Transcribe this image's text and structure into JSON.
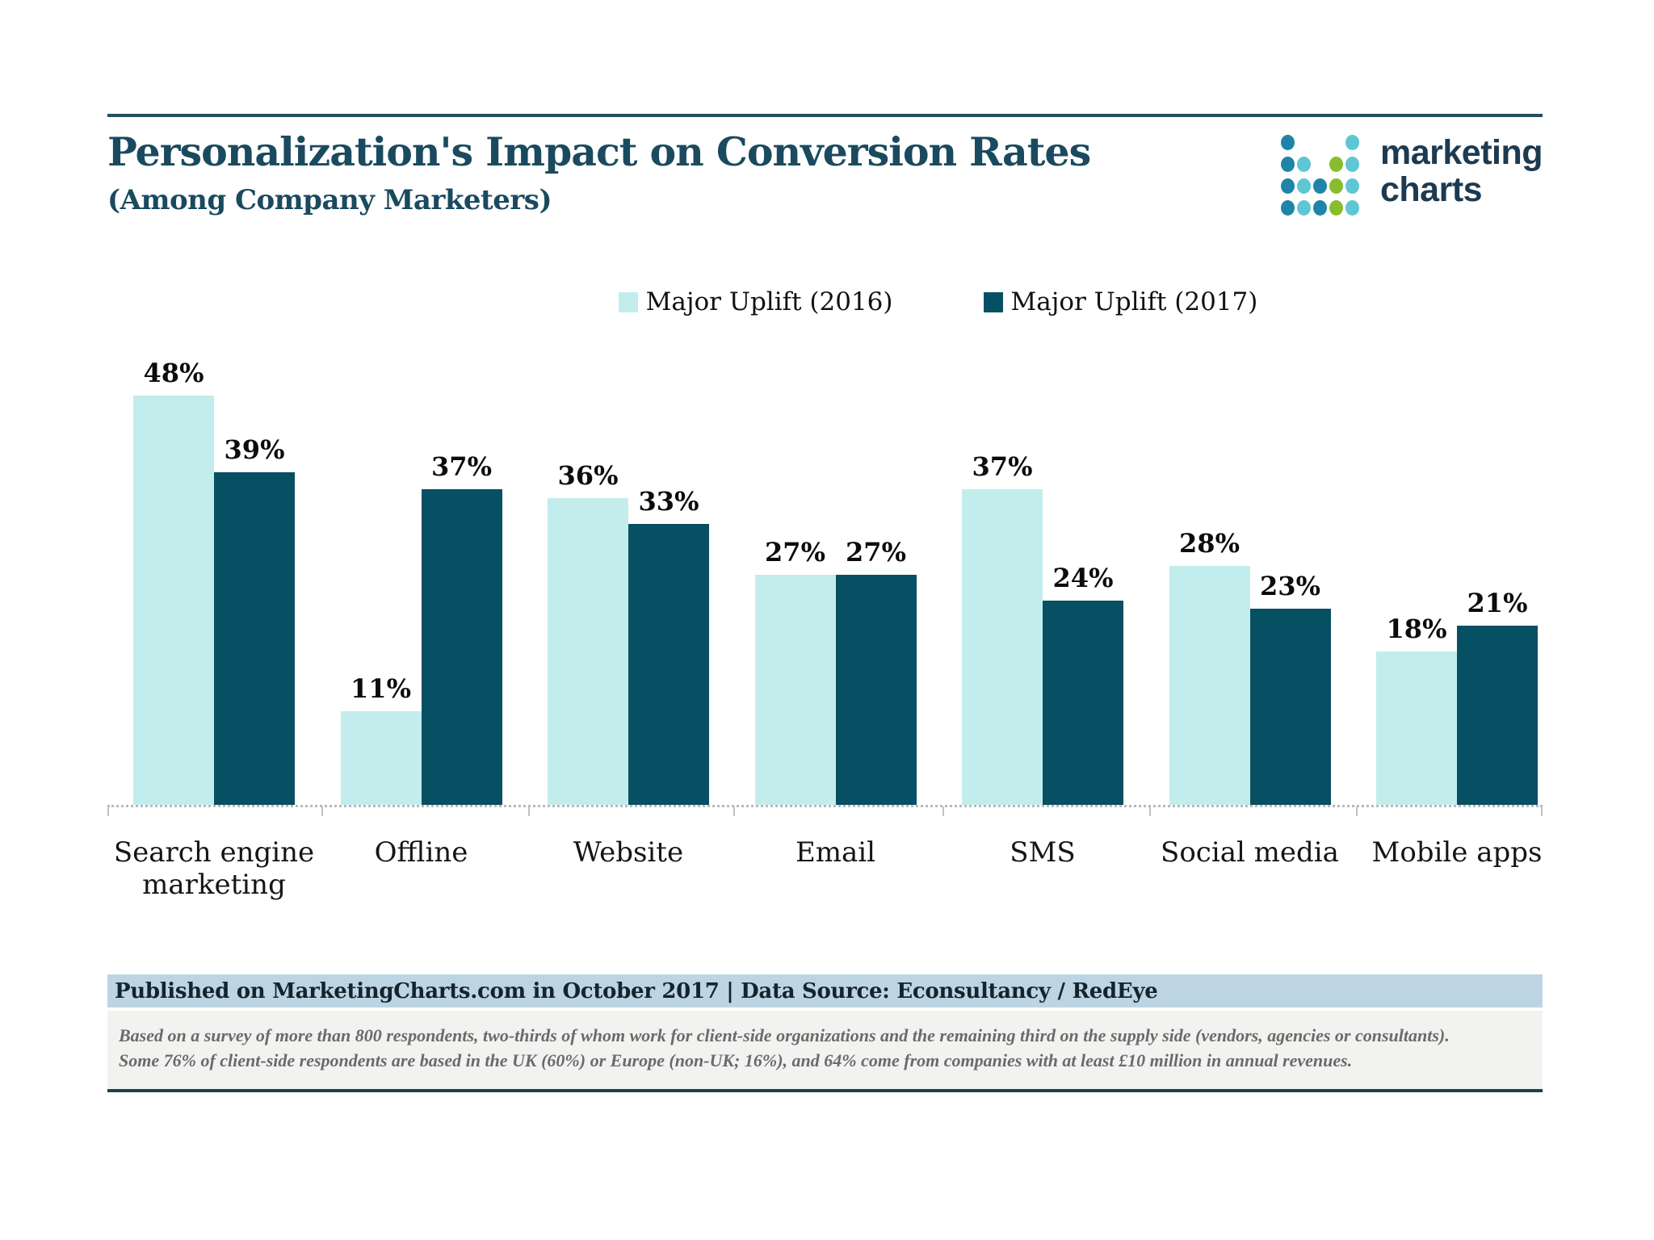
{
  "header": {
    "title": "Personalization's Impact on Conversion Rates",
    "subtitle": "(Among Company Marketers)",
    "logo": {
      "line1": "marketing",
      "line2": "charts",
      "dot_colors": {
        "B": "#1e84a8",
        "T": "#5ec6d4",
        "G": "#88bd2d"
      }
    }
  },
  "legend": [
    {
      "label": "Major Uplift (2016)",
      "color": "#c3edec"
    },
    {
      "label": "Major Uplift (2017)",
      "color": "#074f63"
    }
  ],
  "chart_data": {
    "type": "bar",
    "title": "Personalization's Impact on Conversion Rates",
    "subtitle": "(Among Company Marketers)",
    "categories": [
      "Search engine marketing",
      "Offline",
      "Website",
      "Email",
      "SMS",
      "Social media",
      "Mobile apps"
    ],
    "series": [
      {
        "name": "Major Uplift (2016)",
        "color": "#c3edec",
        "values": [
          48,
          11,
          36,
          27,
          37,
          28,
          18
        ]
      },
      {
        "name": "Major Uplift (2017)",
        "color": "#074f63",
        "values": [
          39,
          37,
          33,
          27,
          24,
          23,
          21
        ]
      }
    ],
    "value_suffix": "%",
    "xlabel": "",
    "ylabel": "",
    "ylim": [
      0,
      53
    ],
    "grid": false,
    "legend_position": "top-center",
    "value_labels": "above-bars"
  },
  "footer": {
    "published": "Published on MarketingCharts.com in October 2017 | Data Source: Econsultancy / RedEye",
    "note_line1": "Based on a survey of more than 800 respondents, two-thirds of whom work for client-side organizations and the remaining third on the supply side (vendors, agencies or consultants).",
    "note_line2": "Some 76% of client-side respondents are based in the UK (60%) or Europe (non-UK; 16%), and 64% come from companies with at least £10 million in annual revenues."
  },
  "colors": {
    "accent_rule": "#23505c",
    "title_text": "#1a4a5f",
    "axis_line": "#b9b9b9",
    "published_bar_bg": "#bdd5e2",
    "note_bg": "#f2f2f1",
    "note_text": "#6a6a6a"
  }
}
